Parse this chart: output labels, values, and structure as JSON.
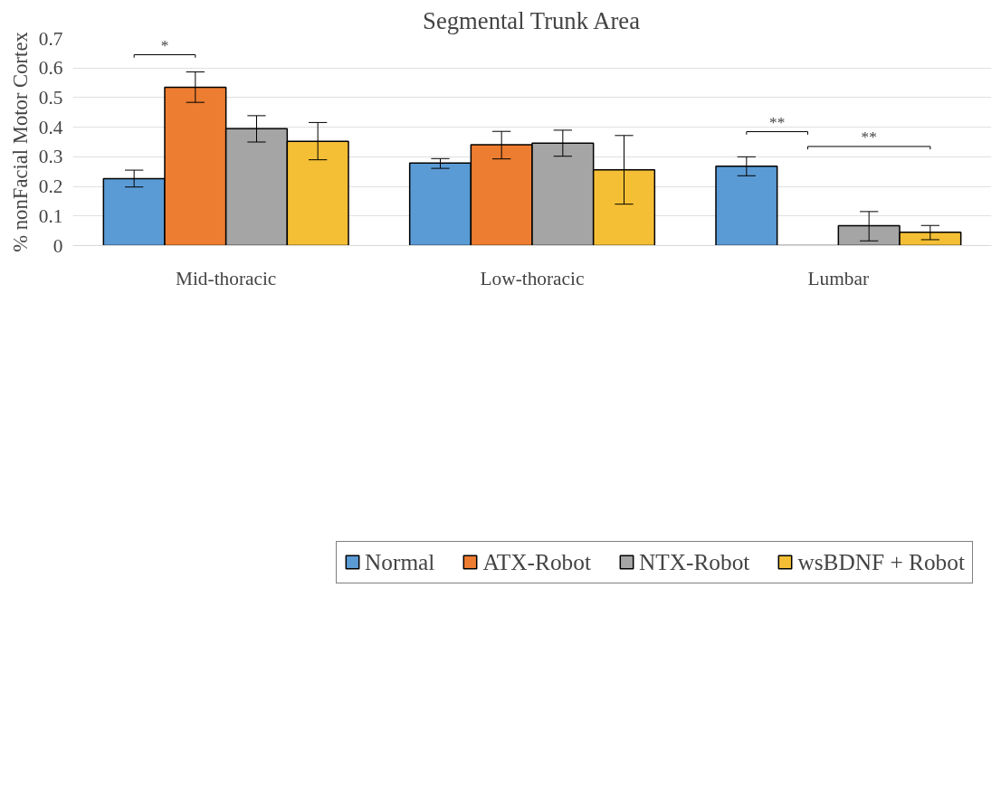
{
  "chart_data": {
    "type": "bar",
    "title": "Segmental Trunk Area",
    "ylabel": "% nonFacial Motor Cortex",
    "categories": [
      "Mid-thoracic",
      "Low-thoracic",
      "Lumbar"
    ],
    "series": [
      {
        "name": "Normal",
        "color": "#5b9bd5",
        "values": [
          0.226,
          0.279,
          0.268
        ],
        "errors": [
          [
            0.198,
            0.255
          ],
          [
            0.261,
            0.294
          ],
          [
            0.236,
            0.3
          ]
        ]
      },
      {
        "name": "ATX-Robot",
        "color": "#ed7d31",
        "values": [
          0.535,
          0.341,
          null
        ],
        "errors": [
          [
            0.484,
            0.587
          ],
          [
            0.293,
            0.386
          ],
          null
        ]
      },
      {
        "name": "NTX-Robot",
        "color": "#a5a5a5",
        "values": [
          0.395,
          0.346,
          0.067
        ],
        "errors": [
          [
            0.35,
            0.439
          ],
          [
            0.302,
            0.39
          ],
          [
            0.016,
            0.115
          ]
        ]
      },
      {
        "name": "wsBDNF + Robot",
        "color": "#f5bf35",
        "values": [
          0.352,
          0.256,
          0.045
        ],
        "errors": [
          [
            0.29,
            0.416
          ],
          [
            0.14,
            0.372
          ],
          [
            0.02,
            0.068
          ]
        ]
      }
    ],
    "ylim": [
      0,
      0.7
    ],
    "yticks": [
      {
        "value": 0,
        "label": "0"
      },
      0.1,
      0.2,
      0.3,
      0.4,
      0.5,
      0.6,
      0.7
    ],
    "grid": "y",
    "legend": "bottom",
    "annotations": [
      "*",
      "**",
      "**"
    ]
  }
}
